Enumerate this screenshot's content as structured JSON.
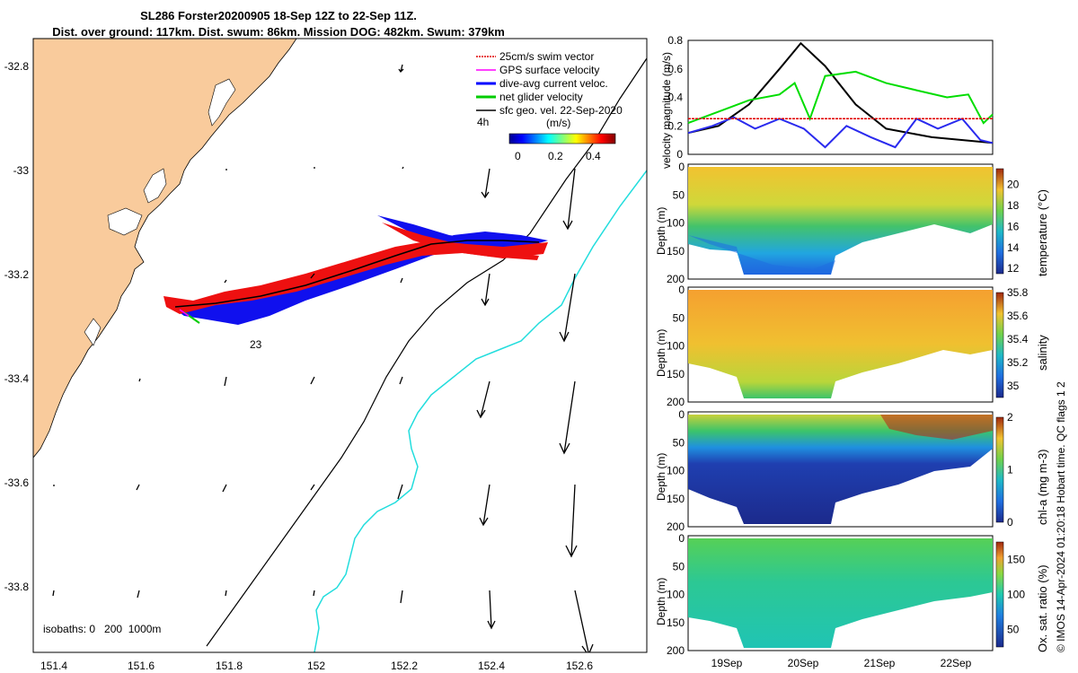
{
  "header": {
    "title_line1": "SL286 Forster20200905 18-Sep 12Z to 22-Sep 11Z.",
    "title_line2": "Dist. over ground: 117km. Dist. swum: 86km. Mission DOG: 482km. Swum: 379km"
  },
  "map": {
    "xticks": [
      "151.4",
      "151.6",
      "151.8",
      "152",
      "152.2",
      "152.4",
      "152.6"
    ],
    "yticks": [
      "-32.8",
      "-33",
      "-33.2",
      "-33.4",
      "-33.6",
      "-33.8"
    ],
    "legend": [
      {
        "label": "25cm/s swim vector",
        "color": "#e00000"
      },
      {
        "label": "GPS surface velocity",
        "color": "#ff00ff"
      },
      {
        "label": "dive-avg current veloc.",
        "color": "#0000ff"
      },
      {
        "label": "net glider velocity",
        "color": "#00cc00"
      },
      {
        "label": "sfc geo. vel. 22-Sep-2020",
        "color": "#000000"
      }
    ],
    "legend_4h": "4h",
    "colorbar_unit": "(m/s)",
    "colorbar_ticks": [
      "0",
      "0.2",
      "0.4"
    ],
    "track_label": "23",
    "isobaths_label": "isobaths: 0   200  1000m",
    "land_color": "#f9cb9c",
    "isobath_200_color": "#000000",
    "isobath_1000_color": "#22dddd"
  },
  "chart_data": [
    {
      "type": "line",
      "ylabel": "velocity magnitude (m/s)",
      "ylim": [
        0,
        0.8
      ],
      "yticks": [
        "0",
        "0.2",
        "0.4",
        "0.6",
        "0.8"
      ],
      "series": [
        {
          "color": "#000000",
          "points": [
            [
              0,
              0.15
            ],
            [
              0.1,
              0.2
            ],
            [
              0.2,
              0.35
            ],
            [
              0.3,
              0.6
            ],
            [
              0.37,
              0.78
            ],
            [
              0.45,
              0.62
            ],
            [
              0.55,
              0.35
            ],
            [
              0.65,
              0.18
            ],
            [
              0.8,
              0.12
            ],
            [
              1,
              0.08
            ]
          ]
        },
        {
          "color": "#00dd00",
          "points": [
            [
              0,
              0.22
            ],
            [
              0.1,
              0.3
            ],
            [
              0.2,
              0.38
            ],
            [
              0.3,
              0.42
            ],
            [
              0.35,
              0.5
            ],
            [
              0.4,
              0.25
            ],
            [
              0.45,
              0.55
            ],
            [
              0.55,
              0.58
            ],
            [
              0.65,
              0.5
            ],
            [
              0.75,
              0.45
            ],
            [
              0.85,
              0.4
            ],
            [
              0.92,
              0.42
            ],
            [
              0.97,
              0.22
            ],
            [
              1,
              0.28
            ]
          ]
        },
        {
          "color": "#2a2aee",
          "points": [
            [
              0,
              0.15
            ],
            [
              0.08,
              0.2
            ],
            [
              0.15,
              0.26
            ],
            [
              0.22,
              0.18
            ],
            [
              0.3,
              0.25
            ],
            [
              0.38,
              0.18
            ],
            [
              0.45,
              0.05
            ],
            [
              0.52,
              0.2
            ],
            [
              0.6,
              0.12
            ],
            [
              0.68,
              0.05
            ],
            [
              0.75,
              0.25
            ],
            [
              0.82,
              0.18
            ],
            [
              0.9,
              0.25
            ],
            [
              0.96,
              0.1
            ],
            [
              1,
              0.08
            ]
          ]
        },
        {
          "color": "#e00000",
          "points": [
            [
              0,
              0.25
            ],
            [
              1,
              0.25
            ]
          ]
        }
      ]
    },
    {
      "type": "heatmap",
      "ylabel": "Depth (m)",
      "clabel": "temperature (°C)",
      "cticks": [
        "12",
        "14",
        "16",
        "18",
        "20"
      ],
      "colorbar_range": [
        11.5,
        21.5
      ]
    },
    {
      "type": "heatmap",
      "ylabel": "Depth (m)",
      "clabel": "salinity",
      "cticks": [
        "35",
        "35.2",
        "35.4",
        "35.6",
        "35.8"
      ],
      "colorbar_range": [
        34.9,
        35.8
      ]
    },
    {
      "type": "heatmap",
      "ylabel": "Depth (m)",
      "clabel": "chl-a (mg m-3)",
      "cticks": [
        "0",
        "1",
        "2"
      ],
      "colorbar_range": [
        0,
        2
      ]
    },
    {
      "type": "heatmap",
      "ylabel": "Depth (m)",
      "clabel": "Ox. sat. ratio (%)",
      "cticks": [
        "50",
        "100",
        "150"
      ],
      "colorbar_range": [
        25,
        175
      ]
    }
  ],
  "profiles": {
    "depth_ticks": [
      "0",
      "50",
      "100",
      "150",
      "200"
    ],
    "xticks": [
      "19Sep",
      "20Sep",
      "21Sep",
      "22Sep"
    ]
  },
  "footer": {
    "credit": "© IMOS 14-Apr-2024 01:20:18 Hobart time. QC flags 1  2"
  }
}
